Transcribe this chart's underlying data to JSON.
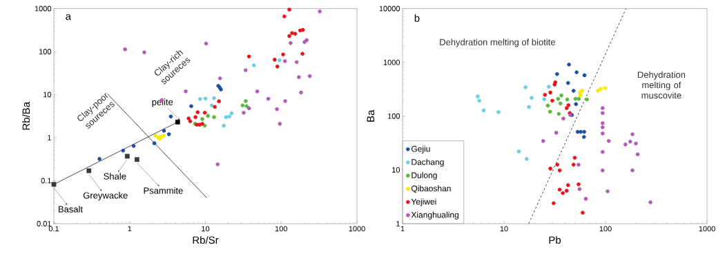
{
  "chart_data": [
    {
      "type": "scatter",
      "title": "a",
      "xlabel": "Rb/Sr",
      "ylabel": "Rb/Ba",
      "log": "xy",
      "xlim": [
        0.1,
        1000
      ],
      "ylim": [
        0.01,
        1000
      ],
      "xticks": [
        0.1,
        1,
        10,
        100,
        1000
      ],
      "yticks": [
        0.01,
        0.1,
        1,
        10,
        100,
        1000
      ],
      "annotations": [
        "Clay-rich soureces",
        "Clay-poor soureces",
        {
          "text": "pelite",
          "x": 4.3,
          "y": 2.3
        },
        {
          "text": "Basalt",
          "x": 0.1,
          "y": 0.082
        },
        {
          "text": "Greywacke",
          "x": 0.29,
          "y": 0.17
        },
        {
          "text": "Shale",
          "x": 0.93,
          "y": 0.37
        },
        {
          "text": "Psammite",
          "x": 1.25,
          "y": 0.31
        }
      ],
      "series": [
        {
          "type": "line",
          "color": "#333333",
          "marker": "none",
          "x": [
            0.1,
            4.3
          ],
          "values": [
            0.082,
            2.3
          ]
        },
        {
          "type": "line",
          "color": "#333333",
          "marker": "none",
          "x": [
            0.51,
            10.4
          ],
          "values": [
            10.4,
            0.04
          ]
        },
        {
          "type": "scatter",
          "marker": "square",
          "colors": [
            "#3a3a3a",
            "#3a3a3a",
            "#3a3a3a",
            "#3a3a3a",
            "#000000"
          ],
          "x": [
            0.1,
            0.29,
            0.93,
            1.25,
            4.3
          ],
          "values": [
            0.082,
            0.17,
            0.37,
            0.31,
            2.3
          ]
        },
        {
          "marker": "circle",
          "color": "#1f4e9c",
          "x": [
            0.4,
            0.82,
            1.13,
            2.12,
            2.84,
            3.3,
            3.5,
            6.5,
            14.8,
            15.5,
            16
          ],
          "values": [
            0.32,
            0.5,
            0.64,
            0.74,
            1.45,
            1.2,
            3.1,
            5.4,
            16,
            14.5,
            13.2
          ]
        },
        {
          "marker": "circle",
          "color": "#6ccfe0",
          "x": [
            8.5,
            10.0,
            13.0,
            12.1,
            17.5,
            18.7,
            20.7,
            22.2,
            43.6,
            94.6
          ],
          "values": [
            7.9,
            8.1,
            8.3,
            5.6,
            1.9,
            3.0,
            3.1,
            3.7,
            48,
            63
          ]
        },
        {
          "marker": "circle",
          "color": "#5cb83c",
          "x": [
            9.8,
            9.1,
            10.8,
            13.0,
            7.3,
            31,
            34,
            35
          ],
          "values": [
            1.9,
            2.7,
            3.2,
            3.0,
            2.1,
            5.6,
            7.1,
            5.4
          ]
        },
        {
          "marker": "circle",
          "color": "#f5ec00",
          "x": [
            2.2,
            2.4,
            2.5,
            2.6,
            2.8
          ],
          "values": [
            1.1,
            1.0,
            0.95,
            1.05,
            1.1
          ]
        },
        {
          "marker": "circle",
          "color": "#e8141c",
          "x": [
            128,
            110,
            128,
            139,
            153,
            178,
            193,
            191,
            106,
            82,
            89,
            37.6,
            15.1,
            13.3,
            6.0,
            6.3,
            7.4,
            7.9,
            7.7,
            8.4,
            9.8,
            9.1
          ],
          "values": [
            950,
            660,
            230,
            270,
            260,
            310,
            320,
            89,
            86,
            65,
            45,
            77,
            7.0,
            5.2,
            2.8,
            2.4,
            3.0,
            3.9,
            2.0,
            2.0,
            3.8,
            2.1
          ]
        },
        {
          "marker": "circle",
          "color": "#b05cb5",
          "x": [
            0.87,
            1.56,
            10.2,
            5.5,
            2.65,
            15.6,
            33.9,
            48.3,
            67.6,
            32,
            37.6,
            87.8,
            96,
            113,
            112,
            133,
            160,
            171,
            183,
            203,
            217,
            238,
            323,
            14.5
          ],
          "values": [
            113,
            96,
            154,
            11.9,
            7.4,
            24,
            37,
            11.9,
            8.0,
            3.8,
            4.8,
            4.6,
            2.1,
            7.1,
            60,
            158,
            57,
            25.5,
            11.2,
            167,
            185,
            27,
            860,
            0.24
          ]
        }
      ]
    },
    {
      "type": "scatter",
      "title": "b",
      "xlabel": "Pb",
      "ylabel": "Ba",
      "log": "xy",
      "legend": "bottom left",
      "xlim": [
        1,
        1000
      ],
      "ylim": [
        1,
        10000
      ],
      "xticks": [
        1,
        10,
        100,
        1000
      ],
      "yticks": [
        1,
        10,
        100,
        1000,
        10000
      ],
      "annotations": [
        "Dehydration melting of biotite",
        "Dehydration melting of muscovite"
      ],
      "series": [
        {
          "type": "line",
          "color": "#333333",
          "marker": "none",
          "line_style": "dashed",
          "x": [
            17.5,
            159
          ],
          "values": [
            1,
            10000
          ]
        },
        {
          "name": "Gejiu",
          "marker": "circle",
          "color": "#1f4e9c",
          "x": [
            43.6,
            33.3,
            51.9,
            62.0,
            42.7,
            48.4,
            51.1,
            46.6,
            53.1,
            57.0,
            61.6,
            61.3
          ],
          "values": [
            910,
            606,
            655,
            575,
            414,
            297,
            167,
            105,
            51,
            51,
            51,
            41
          ]
        },
        {
          "name": "Dachang",
          "marker": "circle",
          "color": "#6ccfe0",
          "x": [
            5.5,
            5.7,
            6.3,
            8.8,
            16.3,
            18.7,
            17.6,
            14.0,
            16.7,
            24.9,
            27.6
          ],
          "values": [
            232,
            194,
            128,
            119,
            345,
            219,
            148,
            22,
            16,
            206,
            352
          ]
        },
        {
          "name": "Dulong",
          "marker": "circle",
          "color": "#5cb83c",
          "x": [
            36.7,
            34.1,
            41.9,
            50.5,
            54.5,
            65.5,
            27.0,
            28.4,
            34.6,
            35.9
          ],
          "values": [
            243,
            210,
            204,
            210,
            210,
            204,
            157,
            121,
            110,
            172
          ]
        },
        {
          "name": "Qibaoshan",
          "marker": "circle",
          "color": "#f5ec00",
          "x": [
            55.8,
            58.9,
            56.5,
            84.1,
            89.6,
            99.2
          ],
          "values": [
            275,
            297,
            243,
            297,
            321,
            334
          ]
        },
        {
          "name": "Yejiwei",
          "marker": "circle",
          "color": "#e8141c",
          "x": [
            32.0,
            31.5,
            25.3,
            29.9,
            43.1,
            41.4,
            44.4,
            28.6,
            49.7,
            48.4,
            33.5,
            35.3,
            28.6,
            35.3,
            37.9,
            41.4,
            42.7,
            54.2,
            30.8,
            59.5
          ],
          "values": [
            427,
            387,
            249,
            194,
            160,
            141,
            114,
            275,
            16.8,
            12.5,
            12.5,
            9.8,
            10.6,
            4.3,
            3.7,
            4.1,
            5.2,
            5.4,
            2.4,
            1.6
          ]
        },
        {
          "name": "Xianghualing",
          "marker": "circle",
          "color": "#b05cb5",
          "x": [
            24.3,
            32.7,
            38.4,
            45.0,
            54.2,
            55.4,
            63.9,
            93.5,
            93.5,
            93.5,
            93.5,
            93.5,
            93.5,
            93.5,
            107.6,
            104.7,
            157,
            175,
            184,
            199,
            207,
            184,
            277
          ],
          "values": [
            34.5,
            49,
            90,
            105,
            12.5,
            4.4,
            2.9,
            141,
            114,
            74,
            62,
            47.6,
            21.6,
            9.8,
            34.5,
            4.0,
            29.7,
            33.6,
            46,
            31,
            19.5,
            9.8,
            2.5
          ]
        }
      ]
    }
  ]
}
